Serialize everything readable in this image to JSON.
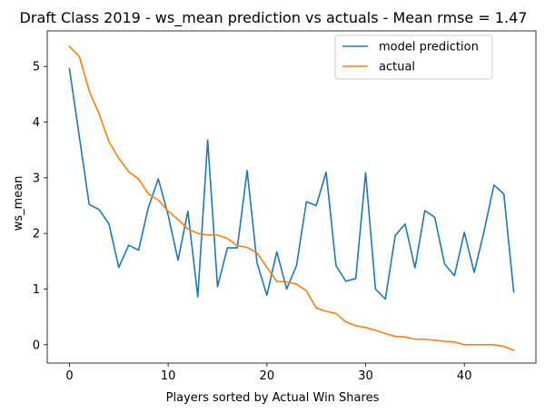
{
  "chart_data": {
    "type": "line",
    "title": "Draft Class 2019 - ws_mean prediction vs actuals - Mean rmse = 1.47",
    "xlabel": "Players sorted by Actual Win Shares",
    "ylabel": "ws_mean",
    "xlim": [
      -2.25,
      47.25
    ],
    "ylim": [
      -0.33,
      5.64
    ],
    "xticks": [
      0,
      10,
      20,
      30,
      40
    ],
    "yticks": [
      0,
      1,
      2,
      3,
      4,
      5
    ],
    "legend_position": "top-right",
    "x": [
      0,
      1,
      2,
      3,
      4,
      5,
      6,
      7,
      8,
      9,
      10,
      11,
      12,
      13,
      14,
      15,
      16,
      17,
      18,
      19,
      20,
      21,
      22,
      23,
      24,
      25,
      26,
      27,
      28,
      29,
      30,
      31,
      32,
      33,
      34,
      35,
      36,
      37,
      38,
      39,
      40,
      41,
      42,
      43,
      44,
      45
    ],
    "series": [
      {
        "name": "model prediction",
        "color": "#1f77b4",
        "values": [
          4.96,
          3.74,
          2.52,
          2.43,
          2.17,
          1.39,
          1.79,
          1.7,
          2.47,
          2.98,
          2.33,
          1.52,
          2.4,
          0.86,
          3.68,
          1.04,
          1.74,
          1.74,
          3.13,
          1.47,
          0.89,
          1.67,
          1.0,
          1.42,
          2.57,
          2.5,
          3.1,
          1.42,
          1.14,
          1.19,
          3.09,
          1.0,
          0.82,
          1.96,
          2.17,
          1.38,
          2.41,
          2.29,
          1.45,
          1.24,
          2.02,
          1.3,
          2.04,
          2.87,
          2.71,
          0.95
        ]
      },
      {
        "name": "actual",
        "color": "#ff7f0e",
        "values": [
          5.36,
          5.18,
          4.56,
          4.15,
          3.65,
          3.35,
          3.11,
          2.98,
          2.71,
          2.6,
          2.4,
          2.25,
          2.08,
          2.0,
          1.97,
          1.97,
          1.91,
          1.78,
          1.75,
          1.65,
          1.39,
          1.14,
          1.13,
          1.09,
          0.97,
          0.66,
          0.6,
          0.56,
          0.41,
          0.34,
          0.31,
          0.26,
          0.2,
          0.15,
          0.14,
          0.1,
          0.1,
          0.08,
          0.06,
          0.05,
          0.0,
          0.0,
          0.0,
          0.0,
          -0.03,
          -0.1
        ]
      }
    ]
  }
}
